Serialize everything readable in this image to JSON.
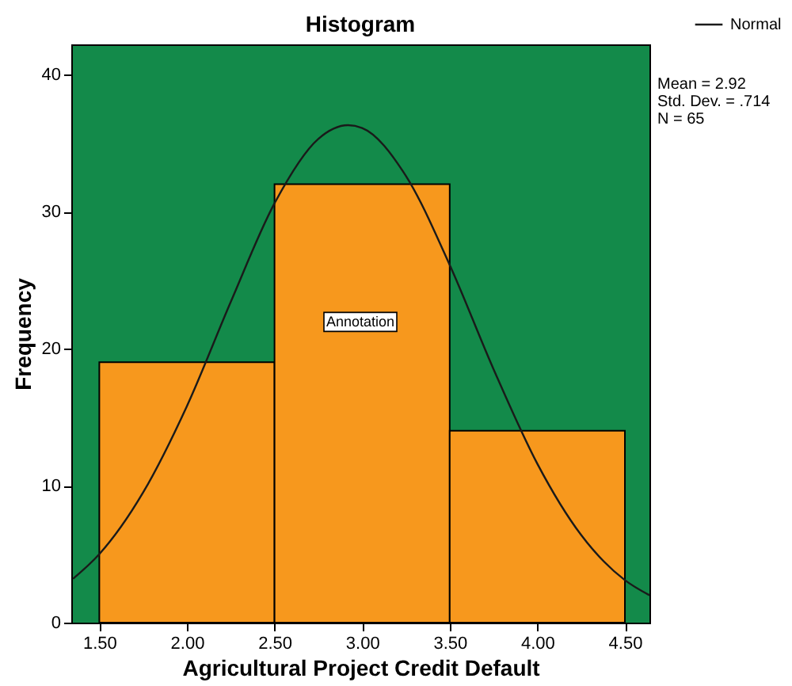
{
  "chart_data": {
    "type": "histogram",
    "title": "Histogram",
    "xlabel": "Agricultural Project Credit Default",
    "ylabel": "Frequency",
    "bins": [
      1.5,
      2.5,
      3.5,
      4.5
    ],
    "values": [
      19,
      32,
      14
    ],
    "color": "#f7981d",
    "series": [
      {
        "name": "Normal",
        "type": "line",
        "color": "#1a1a1a",
        "x": [
          1.35,
          1.5,
          1.75,
          2.0,
          2.25,
          2.5,
          2.75,
          2.92,
          3.0,
          3.25,
          3.5,
          3.75,
          4.0,
          4.25,
          4.5,
          4.64
        ],
        "values": [
          3.2,
          5.0,
          9.5,
          15.8,
          23.4,
          30.6,
          35.3,
          36.3,
          36.1,
          32.6,
          26.1,
          18.5,
          11.6,
          6.4,
          3.1,
          2.0
        ]
      }
    ],
    "xlim": [
      1.34,
      4.64
    ],
    "ylim": [
      0,
      42.2
    ],
    "xticks": [
      {
        "value": 1.5,
        "label": "1.50"
      },
      {
        "value": 2.0,
        "label": "2.00"
      },
      {
        "value": 2.5,
        "label": "2.50"
      },
      {
        "value": 3.0,
        "label": "3.00"
      },
      {
        "value": 3.5,
        "label": "3.50"
      },
      {
        "value": 4.0,
        "label": "4.00"
      },
      {
        "value": 4.5,
        "label": "4.50"
      }
    ],
    "yticks": [
      0,
      10,
      20,
      30,
      40
    ],
    "grid": false,
    "legend": "top right",
    "annotations": [
      "Mean = 2.92",
      "Std. Dev. = .714",
      "N = 65",
      "Annotation"
    ]
  }
}
